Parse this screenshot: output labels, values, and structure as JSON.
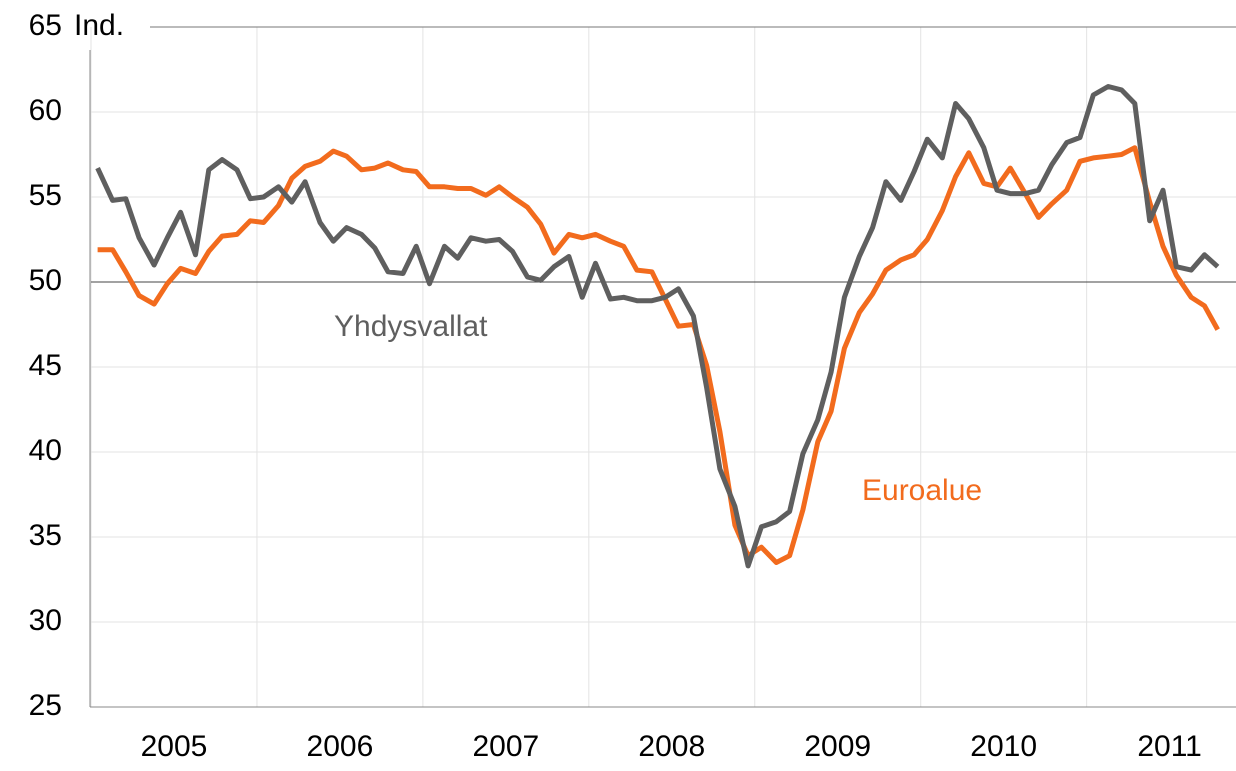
{
  "chart_data": {
    "type": "line",
    "y_label": "Ind.",
    "x": [
      2005.04,
      2005.13,
      2005.21,
      2005.29,
      2005.38,
      2005.46,
      2005.54,
      2005.63,
      2005.71,
      2005.79,
      2005.88,
      2005.96,
      2006.04,
      2006.13,
      2006.21,
      2006.29,
      2006.38,
      2006.46,
      2006.54,
      2006.63,
      2006.71,
      2006.79,
      2006.88,
      2006.96,
      2007.04,
      2007.13,
      2007.21,
      2007.29,
      2007.38,
      2007.46,
      2007.54,
      2007.63,
      2007.71,
      2007.79,
      2007.88,
      2007.96,
      2008.04,
      2008.13,
      2008.21,
      2008.29,
      2008.38,
      2008.46,
      2008.54,
      2008.63,
      2008.71,
      2008.79,
      2008.88,
      2008.96,
      2009.04,
      2009.13,
      2009.21,
      2009.29,
      2009.38,
      2009.46,
      2009.54,
      2009.63,
      2009.71,
      2009.79,
      2009.88,
      2009.96,
      2010.04,
      2010.13,
      2010.21,
      2010.29,
      2010.38,
      2010.46,
      2010.54,
      2010.63,
      2010.71,
      2010.79,
      2010.88,
      2010.96,
      2011.04,
      2011.13,
      2011.21,
      2011.29,
      2011.38,
      2011.46,
      2011.54,
      2011.63,
      2011.71,
      2011.79
    ],
    "series": [
      {
        "name": "Euroalue",
        "color": "#f26b1d",
        "values": [
          51.9,
          51.9,
          50.6,
          49.2,
          48.7,
          49.9,
          50.8,
          50.5,
          51.8,
          52.7,
          52.8,
          53.6,
          53.5,
          54.5,
          56.1,
          56.8,
          57.1,
          57.7,
          57.4,
          56.6,
          56.7,
          57.0,
          56.6,
          56.5,
          55.6,
          55.6,
          55.5,
          55.5,
          55.1,
          55.6,
          55.0,
          54.4,
          53.4,
          51.7,
          52.8,
          52.6,
          52.8,
          52.4,
          52.1,
          50.7,
          50.6,
          49.0,
          47.4,
          47.5,
          45.1,
          41.2,
          35.7,
          33.9,
          34.4,
          33.5,
          33.9,
          36.6,
          40.6,
          42.4,
          46.1,
          48.2,
          49.3,
          50.7,
          51.3,
          51.6,
          52.5,
          54.2,
          56.2,
          57.6,
          55.8,
          55.6,
          56.7,
          55.2,
          53.8,
          54.6,
          55.4,
          57.1,
          57.3,
          57.4,
          57.5,
          57.9,
          54.7,
          52.1,
          50.4,
          49.1,
          48.6,
          47.2
        ]
      },
      {
        "name": "Yhdysvallat",
        "color": "#5f5f5f",
        "values": [
          56.7,
          54.8,
          54.9,
          52.6,
          51.0,
          52.6,
          54.1,
          51.6,
          56.6,
          57.2,
          56.6,
          54.9,
          55.0,
          55.6,
          54.7,
          55.9,
          53.5,
          52.4,
          53.2,
          52.8,
          52.0,
          50.6,
          50.5,
          52.1,
          49.9,
          52.1,
          51.4,
          52.6,
          52.4,
          52.5,
          51.8,
          50.3,
          50.1,
          50.9,
          51.5,
          49.1,
          51.1,
          49.0,
          49.1,
          48.9,
          48.9,
          49.1,
          49.6,
          48.0,
          43.8,
          39.0,
          36.8,
          33.3,
          35.6,
          35.9,
          36.5,
          39.9,
          41.9,
          44.7,
          49.1,
          51.5,
          53.2,
          55.9,
          54.8,
          56.5,
          58.4,
          57.3,
          60.5,
          59.6,
          57.9,
          55.4,
          55.2,
          55.2,
          55.4,
          56.9,
          58.2,
          58.5,
          61.0,
          61.5,
          61.3,
          60.5,
          53.6,
          55.4,
          50.9,
          50.7,
          51.6,
          50.9
        ]
      }
    ],
    "xlim": [
      2005,
      2011.9
    ],
    "xticks": [
      2005,
      2006,
      2007,
      2008,
      2009,
      2010,
      2011
    ],
    "ylim": [
      25,
      65
    ],
    "yticks": [
      25,
      30,
      35,
      40,
      45,
      50,
      55,
      60,
      65
    ],
    "reference_line": 50,
    "grid": true
  }
}
